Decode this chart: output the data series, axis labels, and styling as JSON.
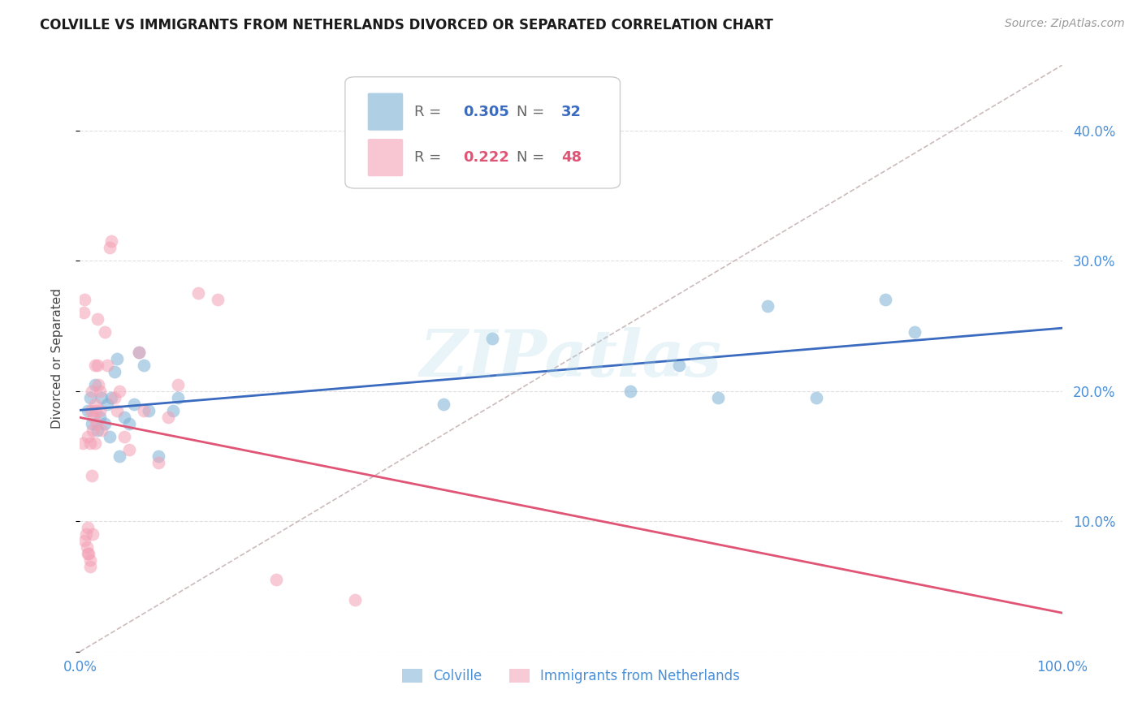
{
  "title": "COLVILLE VS IMMIGRANTS FROM NETHERLANDS DIVORCED OR SEPARATED CORRELATION CHART",
  "source": "Source: ZipAtlas.com",
  "ylabel": "Divorced or Separated",
  "xlim": [
    0.0,
    1.0
  ],
  "ylim": [
    0.0,
    0.45
  ],
  "xticks": [
    0.0,
    0.1,
    0.2,
    0.3,
    0.4,
    0.5,
    0.6,
    0.7,
    0.8,
    0.9,
    1.0
  ],
  "yticks": [
    0.0,
    0.1,
    0.2,
    0.3,
    0.4
  ],
  "background_color": "#ffffff",
  "grid_color": "#e0e0e0",
  "colville_color": "#7bafd4",
  "netherlands_color": "#f4a0b5",
  "colville_line_color": "#3a6bbf",
  "netherlands_line_color": "#e05575",
  "diagonal_color": "#ccbbbb",
  "watermark": "ZIPatlas",
  "legend_R_colville": "0.305",
  "legend_N_colville": "32",
  "legend_R_netherlands": "0.222",
  "legend_N_netherlands": "48",
  "colville_scatter_x": [
    0.008,
    0.01,
    0.012,
    0.015,
    0.018,
    0.02,
    0.022,
    0.025,
    0.028,
    0.03,
    0.032,
    0.035,
    0.038,
    0.04,
    0.045,
    0.05,
    0.055,
    0.06,
    0.065,
    0.07,
    0.08,
    0.095,
    0.1,
    0.37,
    0.42,
    0.56,
    0.61,
    0.65,
    0.7,
    0.75,
    0.82,
    0.85
  ],
  "colville_scatter_y": [
    0.185,
    0.195,
    0.175,
    0.205,
    0.17,
    0.18,
    0.195,
    0.175,
    0.19,
    0.165,
    0.195,
    0.215,
    0.225,
    0.15,
    0.18,
    0.175,
    0.19,
    0.23,
    0.22,
    0.185,
    0.15,
    0.185,
    0.195,
    0.19,
    0.24,
    0.2,
    0.22,
    0.195,
    0.265,
    0.195,
    0.27,
    0.245
  ],
  "netherlands_scatter_x": [
    0.003,
    0.004,
    0.005,
    0.005,
    0.006,
    0.007,
    0.008,
    0.008,
    0.008,
    0.009,
    0.01,
    0.01,
    0.01,
    0.011,
    0.012,
    0.012,
    0.013,
    0.013,
    0.014,
    0.015,
    0.015,
    0.015,
    0.016,
    0.017,
    0.018,
    0.018,
    0.019,
    0.02,
    0.02,
    0.022,
    0.025,
    0.028,
    0.03,
    0.032,
    0.035,
    0.038,
    0.04,
    0.045,
    0.05,
    0.06,
    0.065,
    0.08,
    0.09,
    0.1,
    0.12,
    0.14,
    0.2,
    0.28
  ],
  "netherlands_scatter_y": [
    0.16,
    0.26,
    0.27,
    0.085,
    0.09,
    0.08,
    0.165,
    0.095,
    0.075,
    0.075,
    0.16,
    0.07,
    0.065,
    0.185,
    0.2,
    0.135,
    0.09,
    0.17,
    0.18,
    0.22,
    0.19,
    0.16,
    0.185,
    0.175,
    0.255,
    0.22,
    0.205,
    0.2,
    0.185,
    0.17,
    0.245,
    0.22,
    0.31,
    0.315,
    0.195,
    0.185,
    0.2,
    0.165,
    0.155,
    0.23,
    0.185,
    0.145,
    0.18,
    0.205,
    0.275,
    0.27,
    0.055,
    0.04
  ]
}
